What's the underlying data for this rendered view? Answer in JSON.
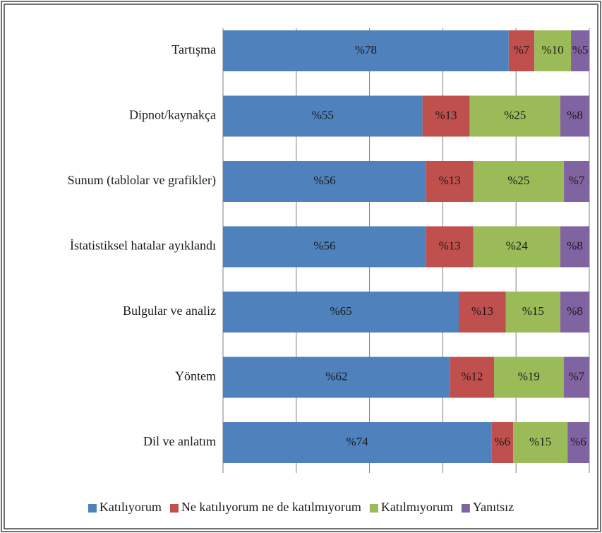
{
  "chart_data": {
    "type": "bar",
    "orientation": "horizontal",
    "stacking": "percent",
    "categories": [
      "Tartışma",
      "Dipnot/kaynakça",
      "Sunum (tablolar ve grafikler)",
      "İstatistiksel hatalar ayıklandı",
      "Bulgular ve analiz",
      "Yöntem",
      "Dil ve anlatım"
    ],
    "xlim": [
      0,
      100
    ],
    "xticks": [
      0,
      20,
      40,
      60,
      80,
      100
    ],
    "grid": true,
    "legend": "bottom",
    "series": [
      {
        "name": "Katılıyorum",
        "color": "#4f81bd",
        "values": [
          78,
          55,
          56,
          56,
          65,
          62,
          74
        ],
        "value_labels": [
          "%78",
          "%55",
          "%56",
          "%56",
          "%65",
          "%62",
          "%74"
        ]
      },
      {
        "name": "Ne katılıyorum ne de katılmıyorum",
        "color": "#c0504d",
        "values": [
          7,
          13,
          13,
          13,
          13,
          12,
          6
        ],
        "value_labels": [
          "%7",
          "%13",
          "%13",
          "%13",
          "%13",
          "%12",
          "%6"
        ]
      },
      {
        "name": "Katılmıyorum",
        "color": "#9bbb59",
        "values": [
          10,
          25,
          25,
          24,
          15,
          19,
          15
        ],
        "value_labels": [
          "%10",
          "%25",
          "%25",
          "%24",
          "%15",
          "%19",
          "%15"
        ]
      },
      {
        "name": "Yanıtsız",
        "color": "#8064a2",
        "values": [
          5,
          8,
          7,
          8,
          8,
          7,
          6
        ],
        "value_labels": [
          "%5",
          "%8",
          "%7",
          "%8",
          "%8",
          "%7",
          "%6"
        ]
      }
    ]
  }
}
